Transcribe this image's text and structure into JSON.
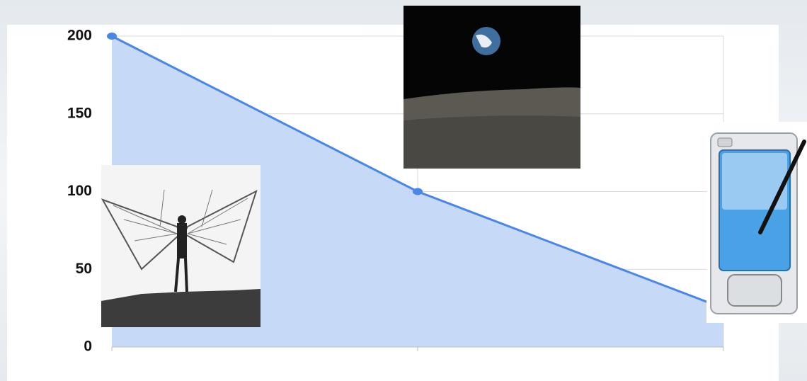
{
  "chart_data": {
    "type": "area",
    "categories": [
      null,
      null,
      null
    ],
    "values": [
      200,
      100,
      25
    ],
    "color": "#4a86e8",
    "fill": "#c6d9f7",
    "ylim": [
      0,
      200
    ],
    "yticks": [
      0,
      50,
      100,
      150,
      200
    ],
    "grid": true
  }
}
